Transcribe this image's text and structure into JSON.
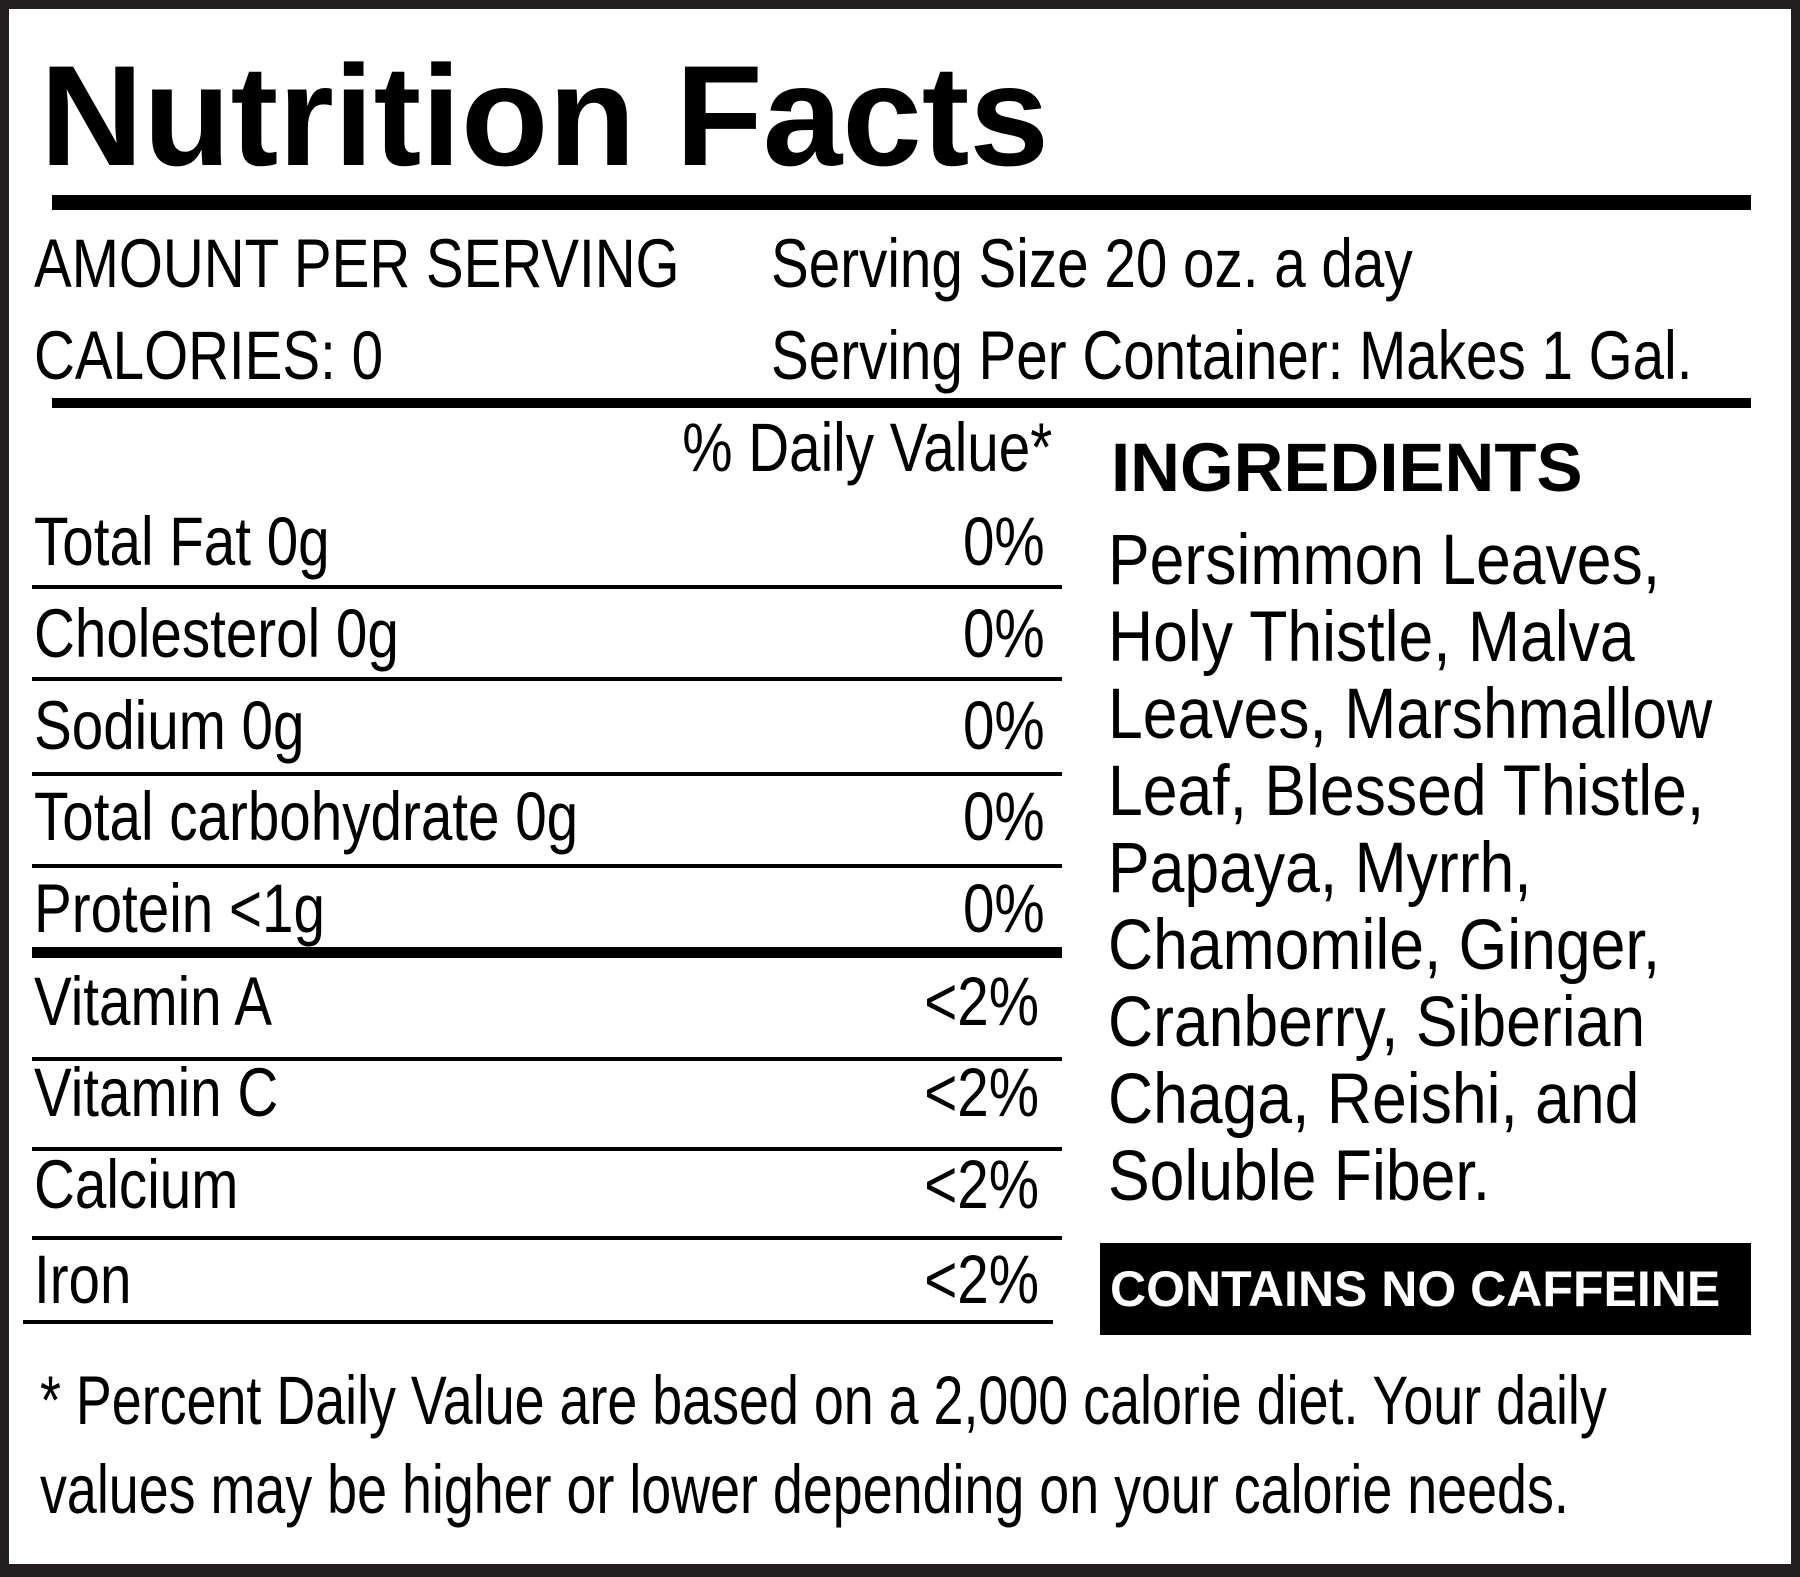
{
  "title": "Nutrition Facts",
  "amount_per_serving": "AMOUNT PER SERVING",
  "calories": "CALORIES: 0",
  "serving_size": "Serving Size 20 oz. a day",
  "servings_per_container": "Serving Per Container: Makes 1 Gal.",
  "daily_value_header": "% Daily Value*",
  "nutrients": [
    {
      "name": "Total Fat 0g",
      "dv": "0%"
    },
    {
      "name": "Cholesterol 0g",
      "dv": "0%"
    },
    {
      "name": "Sodium 0g",
      "dv": "0%"
    },
    {
      "name": "Total carbohydrate 0g",
      "dv": "0%"
    },
    {
      "name": "Protein <1g",
      "dv": "0%"
    },
    {
      "name": "Vitamin A",
      "dv": "<2%"
    },
    {
      "name": "Vitamin C",
      "dv": "<2%"
    },
    {
      "name": "Calcium",
      "dv": "<2%"
    },
    {
      "name": "Iron",
      "dv": "<2%"
    }
  ],
  "ingredients": {
    "heading": "INGREDIENTS",
    "lines": [
      "Persimmon Leaves,",
      "Holy Thistle, Malva",
      "Leaves, Marshmallow",
      "Leaf, Blessed Thistle,",
      "Papaya, Myrrh,",
      "Chamomile, Ginger,",
      "Cranberry, Siberian",
      "Chaga, Reishi, and",
      "Soluble Fiber."
    ]
  },
  "caffeine_badge": "CONTAINS NO CAFFEINE",
  "footnote": [
    "* Percent Daily Value are based on a 2,000 calorie diet. Your daily",
    "values may be higher or lower depending on your calorie needs."
  ]
}
